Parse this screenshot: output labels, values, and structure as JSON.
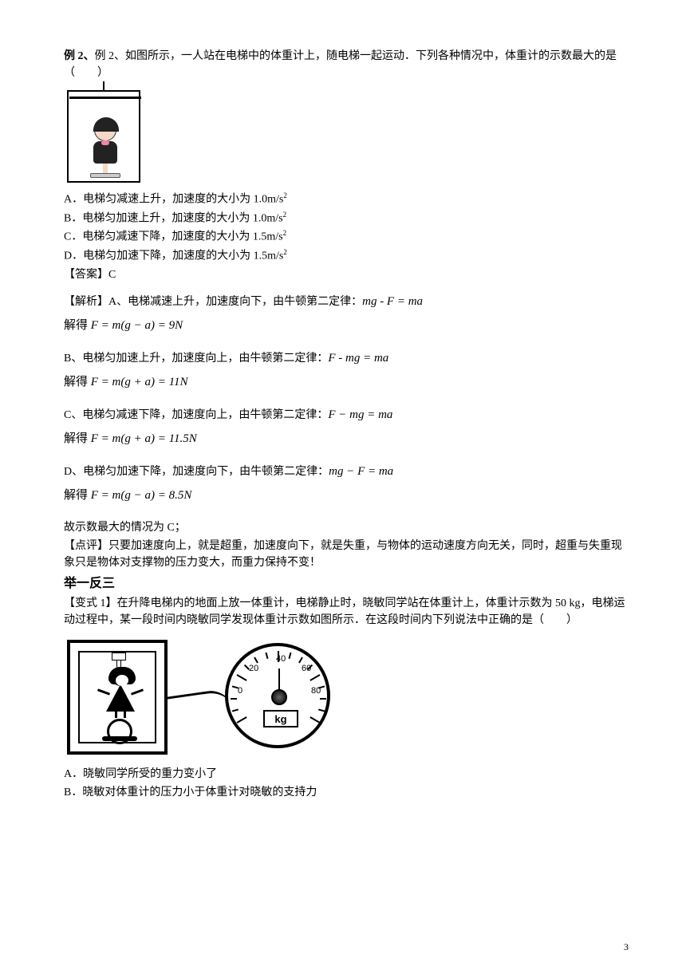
{
  "example2": {
    "title": "例 2、如图所示，一人站在电梯中的体重计上，随电梯一起运动．下列各种情况中，体重计的示数最大的是（　　）",
    "optA": "A．电梯匀减速上升，加速度的大小为 1.0m/s",
    "optB": "B．电梯匀加速上升，加速度的大小为 1.0m/s",
    "optC": "C．电梯匀减速下降，加速度的大小为 1.5m/s",
    "optD": "D．电梯匀加速下降，加速度的大小为 1.5m/s",
    "answer": "【答案】C",
    "explA": "【解析】A、电梯减速上升，加速度向下，由牛顿第二定律：",
    "eqA1": "mg - F = ma",
    "solveA": "解得",
    "eqA2": "F = m(g − a) = 9N",
    "explB": "B、电梯匀加速上升，加速度向上，由牛顿第二定律：",
    "eqB1": "F - mg = ma",
    "solveB": "解得",
    "eqB2": "F = m(g + a) = 11N",
    "explC": "C、电梯匀减速下降，加速度向上，由牛顿第二定律：",
    "eqC1": "F − mg = ma",
    "solveC": "解得",
    "eqC2": "F = m(g + a) = 11.5N",
    "explD": "D、电梯匀加速下降，加速度向下，由牛顿第二定律：",
    "eqD1": "mg − F = ma",
    "solveD": "解得",
    "eqD2": "F = m(g − a) = 8.5N",
    "conclusion": "故示数最大的情况为 C；",
    "comment": "【点评】只要加速度向上，就是超重，加速度向下，就是失重，与物体的运动速度方向无关，同时，超重与失重现象只是物体对支撑物的压力变大，而重力保持不变！"
  },
  "variant": {
    "heading": "举一反三",
    "prompt": "【变式 1】在升降电梯内的地面上放一体重计，电梯静止时，晓敏同学站在体重计上，体重计示数为 50 kg，电梯运动过程中，某一段时间内晓敏同学发现体重计示数如图所示．在这段时间内下列说法中正确的是（　　）",
    "optA": "A．晓敏同学所受的重力变小了",
    "optB": "B．晓敏对体重计的压力小于体重计对晓敏的支持力"
  },
  "gauge": {
    "n0": "0",
    "n20": "20",
    "n40": "40",
    "n60": "60",
    "n80": "80",
    "unit": "kg"
  },
  "pagenum": "3"
}
